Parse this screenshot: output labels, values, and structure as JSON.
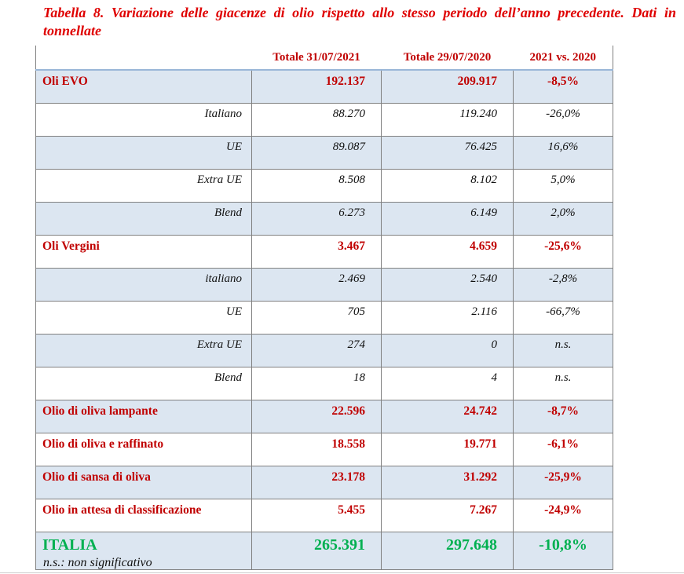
{
  "page": {
    "title": "Tabella 8. Variazione delle giacenze di olio rispetto allo stesso periodo dell’anno precedente. Dati in tonnellate",
    "footnote": "n.s.: non significativo"
  },
  "colors": {
    "title_red": "#df0000",
    "table_red": "#c00000",
    "total_green": "#00b050",
    "row_blue": "#dce6f1",
    "border_gray": "#808080",
    "border_blue": "#9ab7d8"
  },
  "table": {
    "columns": [
      "",
      "Totale 31/07/2021",
      "Totale 29/07/2020",
      "2021 vs. 2020"
    ],
    "rows": [
      {
        "label": "Oli EVO",
        "total_2021": "192.137",
        "total_2020": "209.917",
        "variation": "-8,5%"
      },
      {
        "label": "Italiano",
        "total_2021": "88.270",
        "total_2020": "119.240",
        "variation": "-26,0%"
      },
      {
        "label": "UE",
        "total_2021": "89.087",
        "total_2020": "76.425",
        "variation": "16,6%"
      },
      {
        "label": "Extra UE",
        "total_2021": "8.508",
        "total_2020": "8.102",
        "variation": "5,0%"
      },
      {
        "label": "Blend",
        "total_2021": "6.273",
        "total_2020": "6.149",
        "variation": "2,0%"
      },
      {
        "label": "Oli Vergini",
        "total_2021": "3.467",
        "total_2020": "4.659",
        "variation": "-25,6%"
      },
      {
        "label": "italiano",
        "total_2021": "2.469",
        "total_2020": "2.540",
        "variation": "-2,8%"
      },
      {
        "label": "UE",
        "total_2021": "705",
        "total_2020": "2.116",
        "variation": "-66,7%"
      },
      {
        "label": "Extra UE",
        "total_2021": "274",
        "total_2020": "0",
        "variation": "n.s."
      },
      {
        "label": "Blend",
        "total_2021": "18",
        "total_2020": "4",
        "variation": "n.s."
      },
      {
        "label": "Olio di oliva lampante",
        "total_2021": "22.596",
        "total_2020": "24.742",
        "variation": "-8,7%"
      },
      {
        "label": "Olio di oliva e raffinato",
        "total_2021": "18.558",
        "total_2020": "19.771",
        "variation": "-6,1%"
      },
      {
        "label": "Olio di sansa di oliva",
        "total_2021": "23.178",
        "total_2020": "31.292",
        "variation": "-25,9%"
      },
      {
        "label": "Olio in attesa di classificazione",
        "total_2021": "5.455",
        "total_2020": "7.267",
        "variation": "-24,9%"
      },
      {
        "label": "ITALIA",
        "total_2021": "265.391",
        "total_2020": "297.648",
        "variation": "-10,8%"
      }
    ]
  }
}
